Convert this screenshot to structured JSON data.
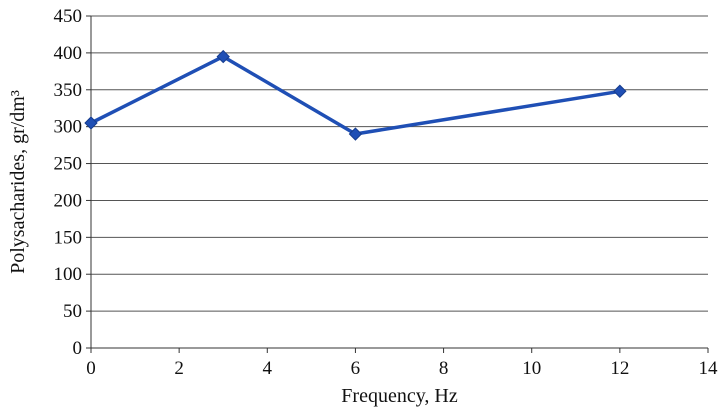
{
  "chart_data": {
    "type": "line",
    "title": "",
    "xlabel": "Frequency, Hz",
    "ylabel": "Polysacharides, gr/dm³",
    "xlim": [
      0,
      14
    ],
    "ylim": [
      0,
      450
    ],
    "xticks": [
      0,
      2,
      4,
      6,
      8,
      10,
      12,
      14
    ],
    "yticks": [
      0,
      50,
      100,
      150,
      200,
      250,
      300,
      350,
      400,
      450
    ],
    "grid": "horizontal",
    "legend": "none",
    "series": [
      {
        "x": [
          0,
          3,
          6,
          12
        ],
        "y": [
          305,
          395,
          290,
          348
        ],
        "color": "#1f4fb5",
        "marker": "diamond"
      }
    ]
  }
}
